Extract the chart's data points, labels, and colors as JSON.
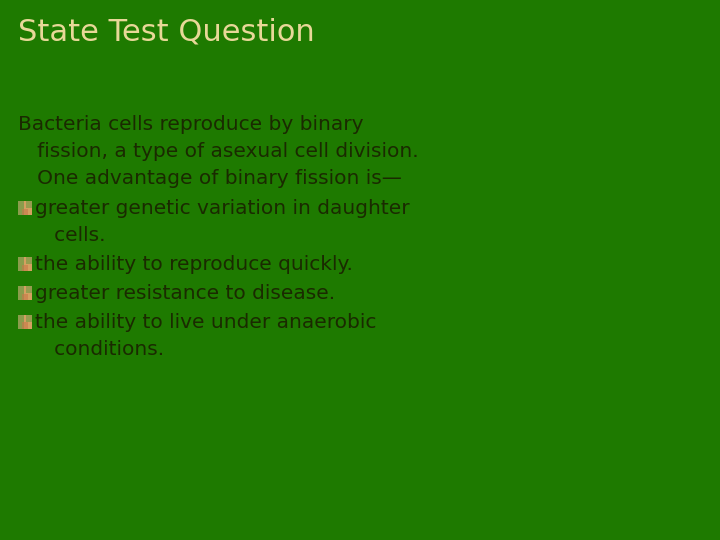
{
  "background_color": "#1e7a00",
  "title": "State Test Question",
  "title_color": "#e8d898",
  "title_fontsize": 22,
  "body_color": "#1a2a00",
  "body_fontsize": 14.5,
  "intro_lines": [
    "Bacteria cells reproduce by binary",
    "   fission, a type of asexual cell division.",
    "   One advantage of binary fission is—"
  ],
  "bullet_items": [
    [
      "greater genetic variation in daughter",
      "   cells."
    ],
    [
      "the ability to reproduce quickly."
    ],
    [
      "greater resistance to disease."
    ],
    [
      "the ability to live under anaerobic",
      "   conditions."
    ]
  ],
  "icon_color_main": "#d4a060",
  "icon_color_green": "#5a9a40",
  "icon_color_accent": "#c8784a"
}
